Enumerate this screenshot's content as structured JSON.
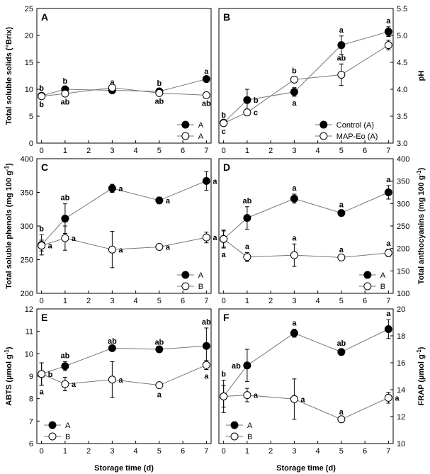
{
  "figure": {
    "xlabel": "Storage time (d)"
  },
  "chart_data": [
    {
      "panel": "A",
      "type": "line",
      "x_ticks": [
        0,
        1,
        2,
        3,
        4,
        5,
        6,
        7
      ],
      "xlim": [
        -0.2,
        7.2
      ],
      "ylim": [
        0,
        25
      ],
      "y_ticks": [
        0,
        5,
        10,
        15,
        20,
        25
      ],
      "ylabel": "Total soluble solids (°Brix)",
      "y_axis_side": "left",
      "legend_position": "bottom-right",
      "series": [
        {
          "name": "A",
          "marker": "filled",
          "x": [
            0,
            1,
            3,
            5,
            7
          ],
          "y": [
            8.8,
            10.0,
            9.8,
            9.6,
            11.9
          ],
          "err": [
            0.3,
            0.4,
            0.4,
            0.4,
            0.3
          ],
          "labels": [
            "b",
            "b",
            "a",
            "b",
            "a"
          ],
          "label_pos": [
            "above",
            "above",
            "above",
            "above",
            "above"
          ]
        },
        {
          "name": "A",
          "marker": "open",
          "x": [
            0,
            1,
            3,
            5,
            7
          ],
          "y": [
            8.7,
            9.2,
            10.3,
            9.3,
            8.9
          ],
          "err": [
            0.3,
            0.3,
            0.4,
            0.3,
            0.3
          ],
          "labels": [
            "b",
            "ab",
            "",
            "ab",
            "ab"
          ],
          "label_pos": [
            "below",
            "below",
            "below",
            "below",
            "below"
          ]
        }
      ]
    },
    {
      "panel": "B",
      "type": "line",
      "x_ticks": [
        0,
        1,
        2,
        3,
        4,
        5,
        6,
        7
      ],
      "xlim": [
        -0.2,
        7.2
      ],
      "ylim": [
        3.0,
        5.5
      ],
      "y_ticks": [
        3.0,
        3.5,
        4.0,
        4.5,
        5.0,
        5.5
      ],
      "y_tick_format": "1dp",
      "ylabel": "pH",
      "y_axis_side": "right",
      "legend_position": "bottom-right",
      "series": [
        {
          "name": "Control (A)",
          "marker": "filled",
          "x": [
            0,
            1,
            3,
            5,
            7
          ],
          "y": [
            3.38,
            3.8,
            3.95,
            4.82,
            5.07
          ],
          "err": [
            0.03,
            0.2,
            0.08,
            0.17,
            0.09
          ],
          "labels": [
            "b",
            "b",
            "a",
            "a",
            "a"
          ],
          "label_pos": [
            "above",
            "right",
            "below",
            "above",
            "above"
          ]
        },
        {
          "name": "MAP-Eo (A)",
          "marker": "open",
          "x": [
            0,
            1,
            3,
            5,
            7
          ],
          "y": [
            3.37,
            3.57,
            4.18,
            4.27,
            4.82
          ],
          "err": [
            0.03,
            0.06,
            0.05,
            0.2,
            0.09
          ],
          "labels": [
            "c",
            "c",
            "b",
            "ab",
            "a"
          ],
          "label_pos": [
            "below",
            "right",
            "above",
            "above",
            "above"
          ]
        }
      ]
    },
    {
      "panel": "C",
      "type": "line",
      "x_ticks": [
        0,
        1,
        2,
        3,
        4,
        5,
        6,
        7
      ],
      "xlim": [
        -0.2,
        7.2
      ],
      "ylim": [
        200,
        400
      ],
      "y_ticks": [
        200,
        250,
        300,
        350,
        400
      ],
      "ylabel": "Total soluble phenols (mg 100 g-1)",
      "y_axis_side": "left",
      "legend_position": "bottom-right",
      "series": [
        {
          "name": "A",
          "marker": "filled",
          "x": [
            0,
            1,
            3,
            5,
            7
          ],
          "y": [
            272,
            311,
            356,
            338,
            367
          ],
          "err": [
            15,
            22,
            6,
            5,
            14
          ],
          "labels": [
            "b",
            "ab",
            "a",
            "a",
            "a"
          ],
          "label_pos": [
            "above",
            "above",
            "right",
            "right",
            "right"
          ]
        },
        {
          "name": "B",
          "marker": "open",
          "x": [
            0,
            1,
            3,
            5,
            7
          ],
          "y": [
            271,
            282,
            265,
            269,
            283
          ],
          "err": [
            8,
            18,
            27,
            3,
            8
          ],
          "labels": [
            "a",
            "a",
            "a",
            "a",
            "a"
          ],
          "label_pos": [
            "right",
            "right",
            "right",
            "right",
            "right"
          ]
        }
      ]
    },
    {
      "panel": "D",
      "type": "line",
      "x_ticks": [
        0,
        1,
        2,
        3,
        4,
        5,
        6,
        7
      ],
      "xlim": [
        -0.2,
        7.2
      ],
      "ylim": [
        100,
        400
      ],
      "y_ticks": [
        100,
        150,
        200,
        250,
        300,
        350,
        400
      ],
      "ylabel": "Total anthocyanins (mg 100 g-1)",
      "y_axis_side": "right",
      "legend_position": "bottom-right",
      "series": [
        {
          "name": "A",
          "marker": "filled",
          "x": [
            0,
            1,
            3,
            5,
            7
          ],
          "y": [
            221,
            268,
            311,
            279,
            325
          ],
          "err": [
            20,
            25,
            10,
            5,
            15
          ],
          "labels": [
            "a",
            "ab",
            "a",
            "a",
            "a"
          ],
          "label_pos": [
            "below",
            "above",
            "above",
            "above",
            "above"
          ]
        },
        {
          "name": "B",
          "marker": "open",
          "x": [
            0,
            1,
            3,
            5,
            7
          ],
          "y": [
            221,
            181,
            185,
            180,
            190
          ],
          "err": [
            18,
            10,
            25,
            4,
            8
          ],
          "labels": [
            "",
            "a",
            "a",
            "a",
            "a"
          ],
          "label_pos": [
            "below",
            "above",
            "above",
            "above",
            "above"
          ]
        }
      ]
    },
    {
      "panel": "E",
      "type": "line",
      "x_ticks": [
        0,
        1,
        2,
        3,
        4,
        5,
        6,
        7
      ],
      "xlim": [
        -0.2,
        7.2
      ],
      "ylim": [
        6,
        12
      ],
      "y_ticks": [
        6,
        7,
        8,
        9,
        10,
        11,
        12
      ],
      "ylabel": "ABTS (µmol g-1)",
      "y_axis_side": "left",
      "legend_position": "bottom-left",
      "series": [
        {
          "name": "A",
          "marker": "filled",
          "x": [
            0,
            1,
            3,
            5,
            7
          ],
          "y": [
            9.1,
            9.45,
            10.25,
            10.2,
            10.35
          ],
          "err": [
            0.5,
            0.2,
            0.05,
            0.05,
            0.8
          ],
          "labels": [
            "b",
            "ab",
            "ab",
            "ab",
            "ab"
          ],
          "label_pos": [
            "right",
            "above",
            "above",
            "above",
            "above"
          ]
        },
        {
          "name": "B",
          "marker": "open",
          "x": [
            0,
            1,
            3,
            5,
            7
          ],
          "y": [
            9.1,
            8.65,
            8.85,
            8.6,
            9.5
          ],
          "err": [
            0.5,
            0.3,
            0.8,
            0.12,
            0.2
          ],
          "labels": [
            "a",
            "a",
            "a",
            "a",
            "a"
          ],
          "label_pos": [
            "below",
            "right",
            "right",
            "below",
            "below"
          ]
        }
      ]
    },
    {
      "panel": "F",
      "type": "line",
      "x_ticks": [
        0,
        1,
        2,
        3,
        4,
        5,
        6,
        7
      ],
      "xlim": [
        -0.2,
        7.2
      ],
      "ylim": [
        10,
        20
      ],
      "y_ticks": [
        10,
        12,
        14,
        16,
        18,
        20
      ],
      "ylabel": "FRAP (µmol g-1)",
      "y_axis_side": "right",
      "legend_position": "bottom-left",
      "series": [
        {
          "name": "A",
          "marker": "filled",
          "x": [
            0,
            1,
            3,
            5,
            7
          ],
          "y": [
            13.5,
            15.8,
            18.2,
            16.8,
            18.5
          ],
          "err": [
            1.2,
            1.2,
            0.3,
            0.2,
            0.7
          ],
          "labels": [
            "b",
            "ab",
            "a",
            "ab",
            "a"
          ],
          "label_pos": [
            "above",
            "left",
            "above",
            "above",
            "above"
          ]
        },
        {
          "name": "B",
          "marker": "open",
          "x": [
            0,
            1,
            3,
            5,
            7
          ],
          "y": [
            13.5,
            13.6,
            13.3,
            11.8,
            13.4
          ],
          "err": [
            0.8,
            0.5,
            1.5,
            0.1,
            0.4
          ],
          "labels": [
            "",
            "a",
            "a",
            "a",
            "a"
          ],
          "label_pos": [
            "below",
            "right",
            "right",
            "above",
            "right"
          ]
        }
      ]
    }
  ]
}
